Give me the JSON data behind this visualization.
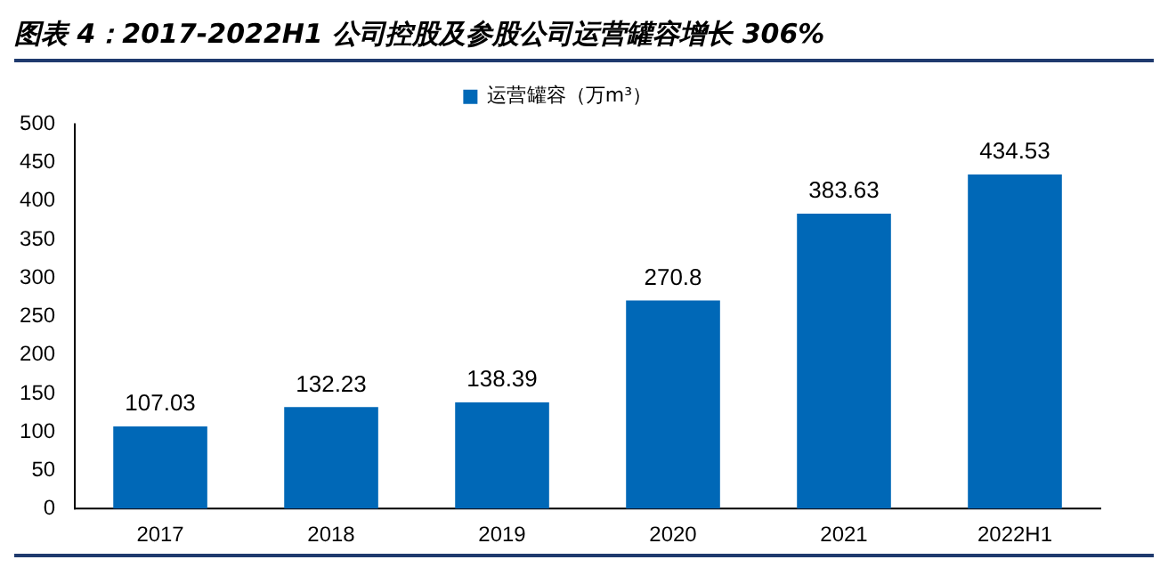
{
  "chart_data": {
    "type": "bar",
    "title": "图表 4：2017-2022H1 公司控股及参股公司运营罐容增长 306%",
    "categories": [
      "2017",
      "2018",
      "2019",
      "2020",
      "2021",
      "2022H1"
    ],
    "series": [
      {
        "name": "运营罐容（万m³）",
        "color": "#0068b7",
        "values": [
          107.03,
          132.23,
          138.39,
          270.8,
          383.63,
          434.53
        ]
      }
    ],
    "ylim": [
      0,
      500
    ],
    "yticks": [
      0,
      50,
      100,
      150,
      200,
      250,
      300,
      350,
      400,
      450,
      500
    ],
    "grid": false,
    "legend": "top",
    "data_labels": true
  }
}
